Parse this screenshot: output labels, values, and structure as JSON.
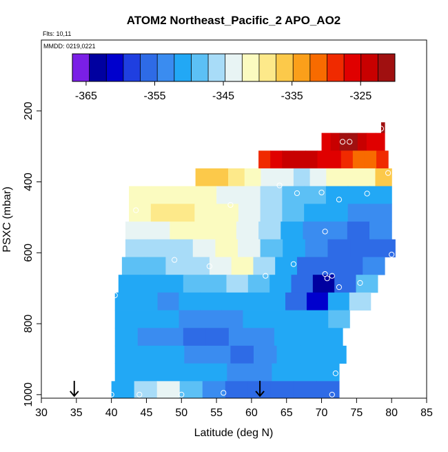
{
  "chart_data": {
    "type": "heatmap",
    "title": "ATOM2 Northeast_Pacific_2 APO_AO2",
    "notes": {
      "flights": "Flts: 10,11",
      "dates": "MMDD: 0219,0221"
    },
    "xlabel": "Latitude (deg N)",
    "ylabel": "PSXC (mbar)",
    "xlim": [
      30,
      85
    ],
    "ylim": [
      1010,
      0
    ],
    "y_reversed": true,
    "grid": false,
    "x_ticks": [
      30,
      35,
      40,
      45,
      50,
      55,
      60,
      65,
      70,
      75,
      80,
      85
    ],
    "y_ticks": [
      200,
      400,
      600,
      800,
      1000
    ],
    "colorbar": {
      "position": "top",
      "range": [
        -367,
        -320
      ],
      "tick_values": [
        -365,
        -355,
        -345,
        -335,
        -325
      ],
      "tick_labels": [
        "-365",
        "-355",
        "-345",
        "-335",
        "-325"
      ],
      "colors": [
        "#7a1fe6",
        "#0000a0",
        "#0000cd",
        "#1f3fe0",
        "#2e6be6",
        "#3a8cf0",
        "#22a8f5",
        "#5cc0f5",
        "#a8dcf8",
        "#e8f4f4",
        "#fbfbc0",
        "#fde98a",
        "#fcc94a",
        "#fb9f1a",
        "#f86b00",
        "#f02a00",
        "#e00000",
        "#c80000",
        "#a01010"
      ]
    },
    "layers": [
      {
        "p_top": 232,
        "p_bottom": 262,
        "lat_min": 78.5,
        "lat_max": 79.0,
        "values": [
          -320
        ]
      },
      {
        "p_top": 262,
        "p_bottom": 312,
        "lat_min": 70.0,
        "lat_max": 79.0,
        "values": [
          -325,
          -323,
          -322,
          -322,
          -324,
          -325,
          -326
        ]
      },
      {
        "p_top": 312,
        "p_bottom": 362,
        "lat_min": 61.0,
        "lat_max": 79.5,
        "values": [
          -328,
          -325,
          -323,
          -323,
          -324,
          -325,
          -327,
          -328,
          -330,
          -330,
          -329
        ]
      },
      {
        "p_top": 362,
        "p_bottom": 412,
        "lat_min": 52.0,
        "lat_max": 80.0,
        "values": [
          -337,
          -336,
          -338,
          -341,
          -343,
          -344,
          -345,
          -343,
          -342,
          -341,
          -340,
          -337
        ]
      },
      {
        "p_top": 412,
        "p_bottom": 462,
        "lat_min": 42.5,
        "lat_max": 80.0,
        "values": [
          -340,
          -340,
          -341,
          -342,
          -343,
          -344,
          -346,
          -348,
          -349,
          -350,
          -351,
          -352
        ]
      },
      {
        "p_top": 462,
        "p_bottom": 512,
        "lat_min": 42.5,
        "lat_max": 80.0,
        "values": [
          -341,
          -339,
          -339,
          -340,
          -341,
          -343,
          -346,
          -349,
          -351,
          -352,
          -353,
          -353
        ]
      },
      {
        "p_top": 512,
        "p_bottom": 562,
        "lat_min": 42.0,
        "lat_max": 80.0,
        "values": [
          -344,
          -343,
          -342,
          -341,
          -341,
          -344,
          -347,
          -350,
          -353,
          -354,
          -355,
          -354
        ]
      },
      {
        "p_top": 562,
        "p_bottom": 612,
        "lat_min": 42.0,
        "lat_max": 80.5,
        "values": [
          -347,
          -346,
          -345,
          -343,
          -342,
          -343,
          -349,
          -352,
          -354,
          -356,
          -357,
          -356
        ]
      },
      {
        "p_top": 612,
        "p_bottom": 662,
        "lat_min": 41.5,
        "lat_max": 79.0,
        "values": [
          -349,
          -348,
          -347,
          -345,
          -344,
          -340,
          -347,
          -352,
          -355,
          -357,
          -356,
          -353
        ]
      },
      {
        "p_top": 662,
        "p_bottom": 712,
        "lat_min": 41.0,
        "lat_max": 78.0,
        "values": [
          -351,
          -350,
          -350,
          -349,
          -348,
          -346,
          -349,
          -352,
          -356,
          -363,
          -357,
          -349
        ]
      },
      {
        "p_top": 712,
        "p_bottom": 762,
        "lat_min": 40.5,
        "lat_max": 77.0,
        "values": [
          -352,
          -352,
          -353,
          -352,
          -351,
          -350,
          -351,
          -352,
          -355,
          -362,
          -352,
          -347
        ]
      },
      {
        "p_top": 762,
        "p_bottom": 812,
        "lat_min": 40.5,
        "lat_max": 74.0,
        "values": [
          -350,
          -351,
          -352,
          -353,
          -354,
          -353,
          -352,
          -350,
          -350,
          -351,
          -349
        ]
      },
      {
        "p_top": 812,
        "p_bottom": 862,
        "lat_min": 40.5,
        "lat_max": 73.0,
        "values": [
          -352,
          -353,
          -354,
          -355,
          -355,
          -354,
          -353,
          -351,
          -350,
          -351
        ]
      },
      {
        "p_top": 862,
        "p_bottom": 912,
        "lat_min": 40.5,
        "lat_max": 73.5,
        "values": [
          -351,
          -351,
          -352,
          -353,
          -354,
          -355,
          -354,
          -352,
          -351,
          -350
        ]
      },
      {
        "p_top": 912,
        "p_bottom": 962,
        "lat_min": 40.5,
        "lat_max": 72.5,
        "values": [
          -350,
          -350,
          -350,
          -351,
          -352,
          -353,
          -353,
          -352,
          -351,
          -350
        ]
      },
      {
        "p_top": 962,
        "p_bottom": 1010,
        "lat_min": 40.0,
        "lat_max": 72.5,
        "values": [
          -350,
          -347,
          -343,
          -348,
          -353,
          -356,
          -357,
          -357,
          -356,
          -355
        ]
      }
    ],
    "sample_points": [
      {
        "lat": 78.5,
        "p": 250
      },
      {
        "lat": 73.0,
        "p": 287
      },
      {
        "lat": 74.0,
        "p": 287
      },
      {
        "lat": 79.5,
        "p": 375
      },
      {
        "lat": 64.0,
        "p": 410
      },
      {
        "lat": 66.5,
        "p": 432
      },
      {
        "lat": 70.0,
        "p": 430
      },
      {
        "lat": 76.5,
        "p": 433
      },
      {
        "lat": 72.5,
        "p": 450
      },
      {
        "lat": 57.0,
        "p": 465
      },
      {
        "lat": 43.5,
        "p": 480
      },
      {
        "lat": 70.5,
        "p": 540
      },
      {
        "lat": 80.0,
        "p": 605
      },
      {
        "lat": 49.0,
        "p": 620
      },
      {
        "lat": 54.0,
        "p": 638
      },
      {
        "lat": 66.0,
        "p": 632
      },
      {
        "lat": 62.0,
        "p": 665
      },
      {
        "lat": 70.5,
        "p": 660
      },
      {
        "lat": 71.5,
        "p": 665
      },
      {
        "lat": 70.8,
        "p": 672
      },
      {
        "lat": 75.5,
        "p": 685
      },
      {
        "lat": 72.5,
        "p": 697
      },
      {
        "lat": 40.5,
        "p": 720
      },
      {
        "lat": 72.0,
        "p": 940
      },
      {
        "lat": 56.0,
        "p": 995
      },
      {
        "lat": 40.0,
        "p": 1000
      },
      {
        "lat": 44.0,
        "p": 1000
      },
      {
        "lat": 50.0,
        "p": 1000
      },
      {
        "lat": 71.5,
        "p": 1000
      }
    ],
    "arrows": [
      {
        "lat": 34.7,
        "p": 1000
      },
      {
        "lat": 61.2,
        "p": 1000
      }
    ]
  }
}
